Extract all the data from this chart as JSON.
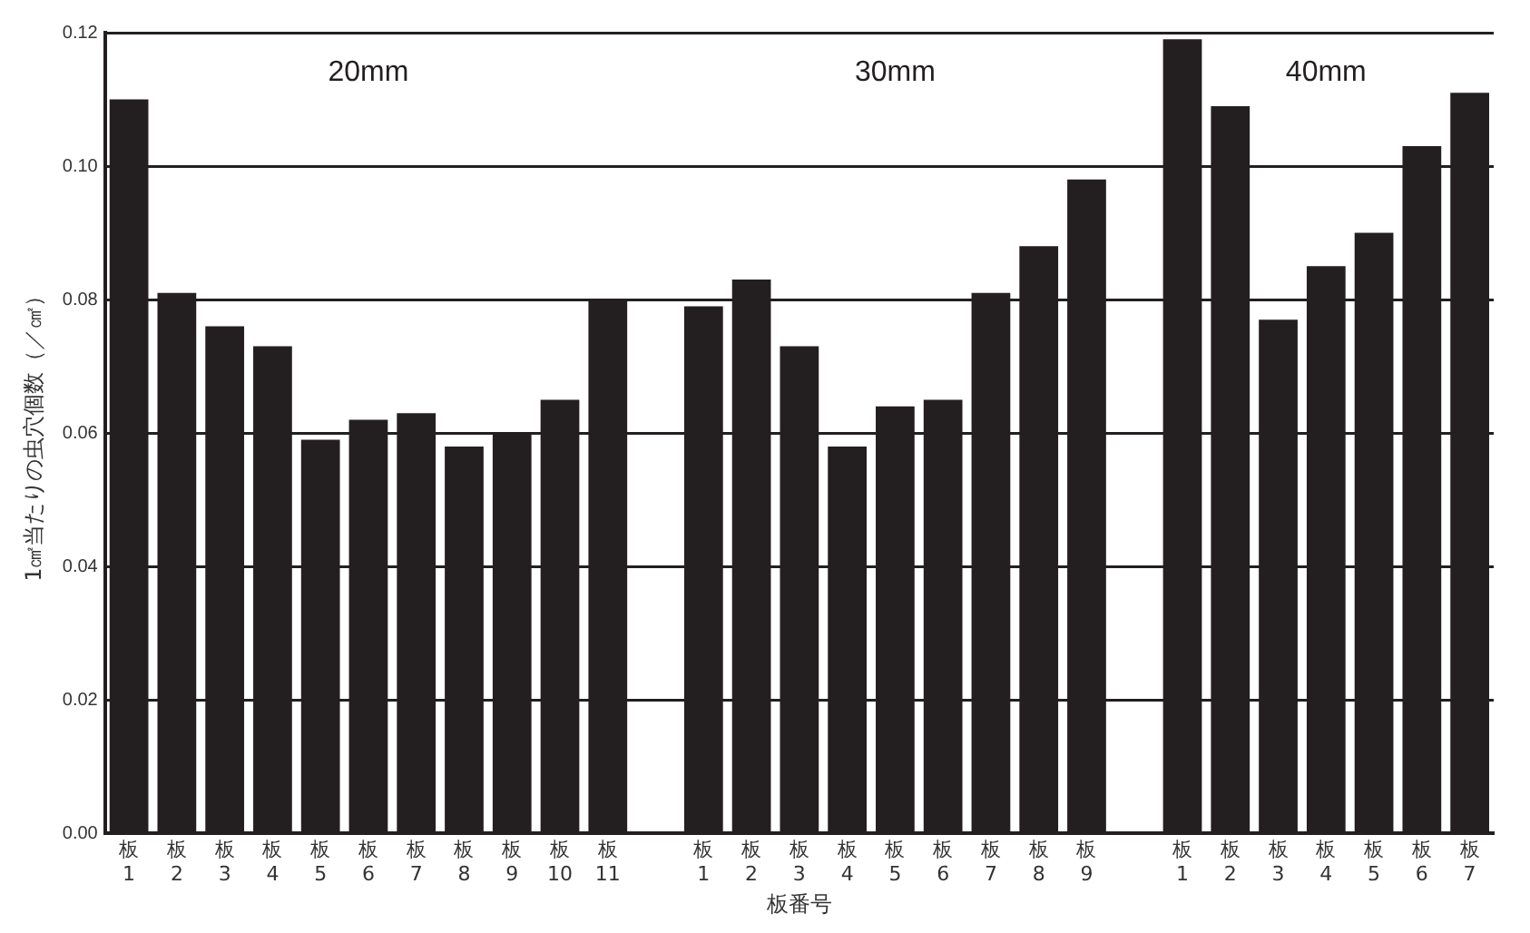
{
  "chart_data": {
    "type": "bar",
    "xlabel": "板番号",
    "ylabel": "1㎠当たりの虫穴個数（／㎠）",
    "categories": [
      "板\n1",
      "板\n2",
      "板\n3",
      "板\n4",
      "板\n5",
      "板\n6",
      "板\n7",
      "板\n8",
      "板\n9",
      "板\n10",
      "板\n11",
      null,
      "板\n1",
      "板\n2",
      "板\n3",
      "板\n4",
      "板\n5",
      "板\n6",
      "板\n7",
      "板\n8",
      "板\n9",
      null,
      "板\n1",
      "板\n2",
      "板\n3",
      "板\n4",
      "板\n5",
      "板\n6",
      "板\n7"
    ],
    "values": [
      0.11,
      0.081,
      0.076,
      0.073,
      0.059,
      0.062,
      0.063,
      0.058,
      0.06,
      0.065,
      0.08,
      null,
      0.079,
      0.083,
      0.073,
      0.058,
      0.064,
      0.065,
      0.081,
      0.088,
      0.098,
      null,
      0.119,
      0.109,
      0.077,
      0.085,
      0.09,
      0.103,
      0.111
    ],
    "color": "#231f20",
    "ylim": [
      0,
      0.12
    ],
    "yticks": [
      {
        "value": 0,
        "label": "0.00"
      },
      0.02,
      0.04,
      0.06,
      0.08,
      {
        "value": 0.1,
        "label": "0.10"
      },
      0.12
    ],
    "grid": "y",
    "annotations": [
      "20mm",
      "30mm",
      "40mm"
    ]
  }
}
